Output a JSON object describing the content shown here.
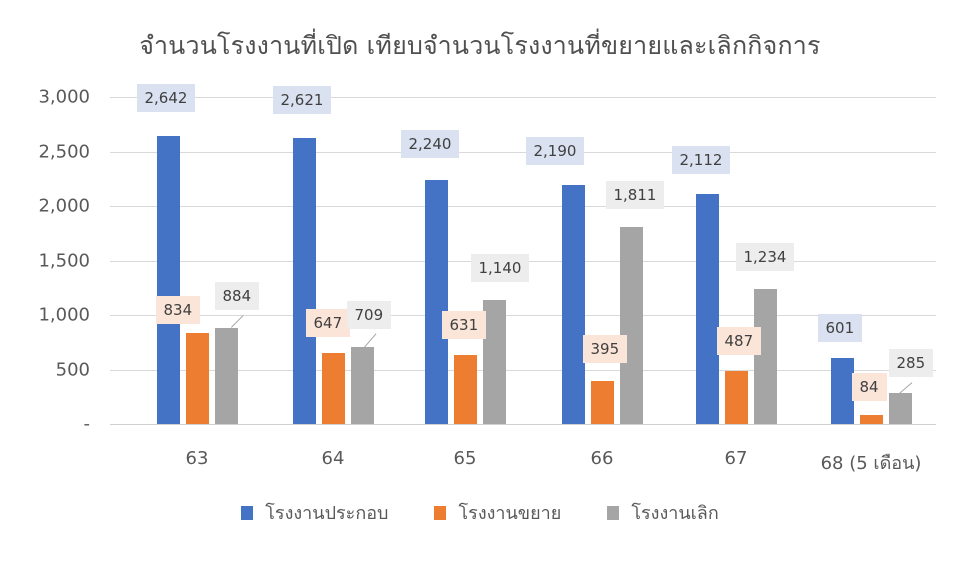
{
  "chart_data": {
    "type": "bar",
    "title": "จำนวนโรงงานที่เปิด เทียบจำนวนโรงงานที่ขยายและเลิกกิจการ",
    "xlabel": "",
    "ylabel": "",
    "categories": [
      "63",
      "64",
      "65",
      "66",
      "67",
      "68 (5 เดือน)"
    ],
    "series": [
      {
        "name": "โรงงานประกอบ",
        "color": "#4472c4",
        "values": [
          2642,
          2621,
          2240,
          2190,
          2112,
          601
        ],
        "labels": [
          "2,642",
          "2,621",
          "2,240",
          "2,190",
          "2,112",
          "601"
        ]
      },
      {
        "name": "โรงงานขยาย",
        "color": "#ed7d31",
        "values": [
          834,
          647,
          631,
          395,
          487,
          84
        ],
        "labels": [
          "834",
          "647",
          "631",
          "395",
          "487",
          "84"
        ]
      },
      {
        "name": "โรงงานเลิก",
        "color": "#a5a5a5",
        "values": [
          884,
          709,
          1140,
          1811,
          1234,
          285
        ],
        "labels": [
          "884",
          "709",
          "1,140",
          "1,811",
          "1,234",
          "285"
        ]
      }
    ],
    "ylim": [
      0,
      3000
    ],
    "yticks": [
      0,
      500,
      1000,
      1500,
      2000,
      2500,
      3000
    ],
    "ytick_labels": [
      "-",
      "500",
      "1,000",
      "1,500",
      "2,000",
      "2,500",
      "3,000"
    ],
    "grid": true,
    "legend_position": "bottom",
    "data_labels": true
  }
}
